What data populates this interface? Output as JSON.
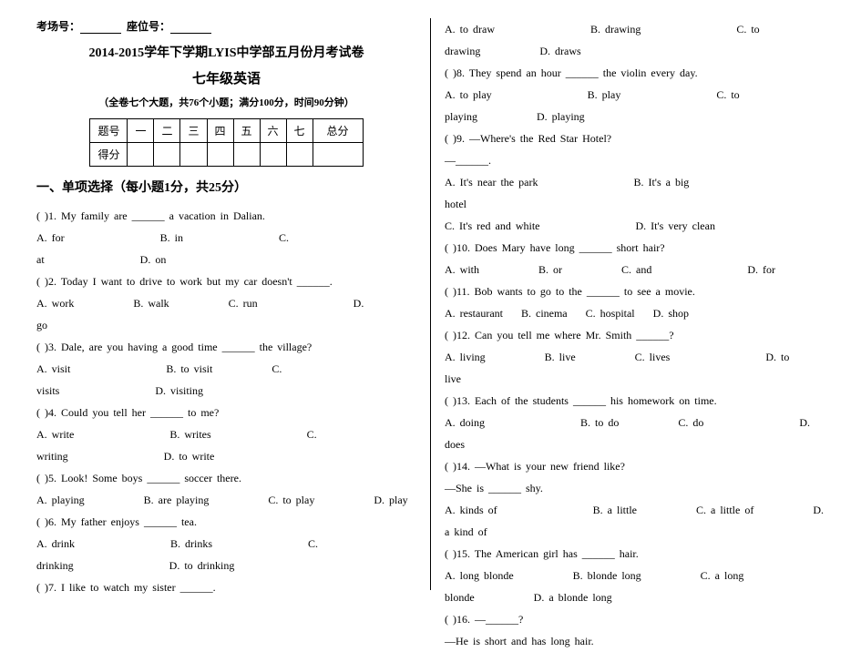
{
  "header": {
    "examRoomLabel": "考场号：",
    "seatLabel": "座位号：",
    "title1": "2014-2015学年下学期LYIS中学部五月份月考试卷",
    "title2": "七年级英语",
    "subtitle": "（全卷七个大题，共76个小题；满分100分，时间90分钟）"
  },
  "scoreTable": {
    "row1": [
      "题号",
      "一",
      "二",
      "三",
      "四",
      "五",
      "六",
      "七",
      "总分"
    ],
    "row2Label": "得分"
  },
  "section1": {
    "title": "一、单项选择（每小题1分，共25分）"
  },
  "questions": {
    "q1": {
      "stem": "(     )1. My family are ______ a vacation in Dalian.",
      "optA": "A. for",
      "optB": "B. in",
      "optC": "C.",
      "line2": "at",
      "optD": "D. on"
    },
    "q2": {
      "stem": "(     )2. Today I want to drive to work but my car doesn't ______.",
      "optA": "A. work",
      "optB": "B. walk",
      "optC": "C. run",
      "optD": "D.",
      "line2": "go"
    },
    "q3": {
      "stem": "(     )3. Dale, are you having a good time ______ the village?",
      "optA": "A. visit",
      "optB": "B. to visit",
      "optC": "C.",
      "line2": "visits",
      "optD": "D. visiting"
    },
    "q4": {
      "stem": "(     )4. Could you tell her ______ to me?",
      "optA": "A. write",
      "optB": "B. writes",
      "optC": "C.",
      "line2": "writing",
      "optD": "D. to write"
    },
    "q5": {
      "stem": "(     )5. Look! Some boys ______ soccer there.",
      "optA": "A. playing",
      "optB": "B. are playing",
      "optC": "C. to play",
      "optD": "D. play"
    },
    "q6": {
      "stem": "(     )6. My father enjoys ______ tea.",
      "optA": "A. drink",
      "optB": "B. drinks",
      "optC": "C.",
      "line2": "drinking",
      "optD": "D. to drinking"
    },
    "q7": {
      "stem": "(     )7. I like to watch my sister ______."
    },
    "q7opts": {
      "optA": "A. to draw",
      "optB": "B. drawing",
      "optC": "C. to",
      "line2": "drawing",
      "optD": "D. draws"
    },
    "q8": {
      "stem": "(     )8. They spend an hour ______ the violin every day.",
      "optA": "A. to play",
      "optB": "B. play",
      "optC": "C. to",
      "line2": "playing",
      "optD": "D. playing"
    },
    "q9": {
      "stem": "(     )9. —Where's the Red Star Hotel?",
      "dash": "—______.",
      "optA": "A. It's near the park",
      "optB": "B. It's a big",
      "line2": "hotel",
      "optC": "C. It's red and white",
      "optD": "D. It's very clean"
    },
    "q10": {
      "stem": "(     )10. Does Mary have long ______ short hair?",
      "optA": "A. with",
      "optB": "B. or",
      "optC": "C. and",
      "optD": "D. for"
    },
    "q11": {
      "stem": "(     )11. Bob wants to go to the ______ to see a movie.",
      "optA": "A. restaurant",
      "optB": "B. cinema",
      "optC": "C. hospital",
      "optD": "D. shop"
    },
    "q12": {
      "stem": "(     )12. Can you tell me where Mr. Smith ______?",
      "optA": "A. living",
      "optB": "B. live",
      "optC": "C. lives",
      "optD": "D. to",
      "line2": "live"
    },
    "q13": {
      "stem": "(     )13. Each of the students ______ his homework on time.",
      "optA": "A. doing",
      "optB": "B. to do",
      "optC": "C. do",
      "optD": "D.",
      "line2": "does"
    },
    "q14": {
      "stem": "(     )14. —What is your new friend like?",
      "line2": "—She is ______ shy.",
      "optA": "A. kinds of",
      "optB": "B. a little",
      "optC": "C. a little of",
      "optD": "D.",
      "line3": "a kind of"
    },
    "q15": {
      "stem": "(     )15. The American girl has ______ hair.",
      "optA": "A. long blonde",
      "optB": "B. blonde long",
      "optC": "C. a long",
      "line2": "blonde",
      "optD": "D. a blonde long"
    },
    "q16": {
      "stem": "(     )16. —______?",
      "line2": "—He is short and has long hair."
    }
  }
}
